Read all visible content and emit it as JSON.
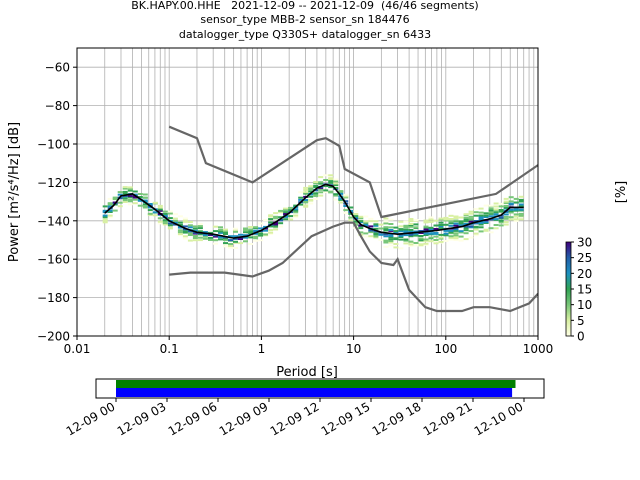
{
  "title_lines": [
    "BK.HAPY.00.HHE   2021-12-09 -- 2021-12-09  (46/46 segments)",
    "sensor_type MBB-2 sensor_sn 184476",
    "datalogger_type Q330S+ datalogger_sn 6433"
  ],
  "chart_data": {
    "type": "heatmap",
    "xlabel": "Period [s]",
    "ylabel": "Power [m²/s⁴/Hz] [dB]",
    "x_scale": "log",
    "xlim": [
      0.01,
      1000
    ],
    "ylim": [
      -200,
      -50
    ],
    "x_ticks": [
      0.01,
      0.1,
      1,
      10,
      100,
      1000
    ],
    "x_tick_labels": [
      "0.01",
      "0.1",
      "1",
      "10",
      "100",
      "1000"
    ],
    "y_ticks": [
      -200,
      -180,
      -160,
      -140,
      -120,
      -100,
      -80,
      -60
    ],
    "y_tick_labels": [
      "−200",
      "−180",
      "−160",
      "−140",
      "−120",
      "−100",
      "−80",
      "−60"
    ],
    "grid": true,
    "mean_curve": [
      [
        0.02,
        -136
      ],
      [
        0.025,
        -132
      ],
      [
        0.03,
        -127
      ],
      [
        0.04,
        -126
      ],
      [
        0.05,
        -129
      ],
      [
        0.07,
        -134
      ],
      [
        0.1,
        -140
      ],
      [
        0.15,
        -144
      ],
      [
        0.2,
        -146
      ],
      [
        0.3,
        -147
      ],
      [
        0.5,
        -149
      ],
      [
        0.7,
        -148
      ],
      [
        1,
        -145
      ],
      [
        1.5,
        -140
      ],
      [
        2,
        -136
      ],
      [
        3,
        -128
      ],
      [
        4,
        -123
      ],
      [
        5,
        -121
      ],
      [
        6,
        -122
      ],
      [
        7,
        -126
      ],
      [
        8,
        -130
      ],
      [
        10,
        -138
      ],
      [
        12,
        -142
      ],
      [
        15,
        -144
      ],
      [
        20,
        -146
      ],
      [
        30,
        -147
      ],
      [
        50,
        -146
      ],
      [
        80,
        -145
      ],
      [
        150,
        -143
      ],
      [
        200,
        -141
      ],
      [
        300,
        -139
      ],
      [
        400,
        -137
      ],
      [
        500,
        -133
      ],
      [
        700,
        -133
      ]
    ],
    "nhnm": [
      [
        0.1,
        -91
      ],
      [
        0.2,
        -97
      ],
      [
        0.25,
        -110
      ],
      [
        0.8,
        -120
      ],
      [
        4,
        -98
      ],
      [
        5,
        -97
      ],
      [
        7,
        -101
      ],
      [
        8,
        -113
      ],
      [
        15,
        -120
      ],
      [
        20,
        -138
      ],
      [
        350,
        -126
      ],
      [
        1000,
        -111
      ]
    ],
    "nlnm": [
      [
        0.1,
        -168
      ],
      [
        0.17,
        -167
      ],
      [
        0.4,
        -167
      ],
      [
        0.8,
        -169
      ],
      [
        1.2,
        -166
      ],
      [
        1.7,
        -162
      ],
      [
        3.5,
        -148
      ],
      [
        6,
        -143
      ],
      [
        8,
        -141
      ],
      [
        10,
        -141
      ],
      [
        12,
        -148
      ],
      [
        15,
        -156
      ],
      [
        20,
        -162
      ],
      [
        27,
        -163
      ],
      [
        30,
        -160
      ],
      [
        40,
        -176
      ],
      [
        60,
        -185
      ],
      [
        80,
        -187
      ],
      [
        150,
        -187
      ],
      [
        200,
        -185
      ],
      [
        300,
        -185
      ],
      [
        500,
        -187
      ],
      [
        800,
        -183
      ],
      [
        1000,
        -178
      ]
    ],
    "colorbar": {
      "label": "[%]",
      "range": [
        0,
        30
      ],
      "ticks": [
        "0",
        "5",
        "10",
        "15",
        "20",
        "25",
        "30"
      ],
      "colors": [
        "#ffffe5",
        "#d9f0a3",
        "#78c679",
        "#31a354",
        "#1d91c0",
        "#225ea8",
        "#3f007d"
      ]
    },
    "coverage": {
      "tick_labels": [
        "12-09 00",
        "12-09 03",
        "12-09 06",
        "12-09 09",
        "12-09 12",
        "12-09 15",
        "12-09 18",
        "12-09 21",
        "12-10 00"
      ],
      "data_available": {
        "start_hours": 0,
        "end_hours": 23.5,
        "color": "#008000"
      },
      "data_used": {
        "start_hours": 0,
        "end_hours": 23.3,
        "color": "#0000ff"
      }
    }
  }
}
